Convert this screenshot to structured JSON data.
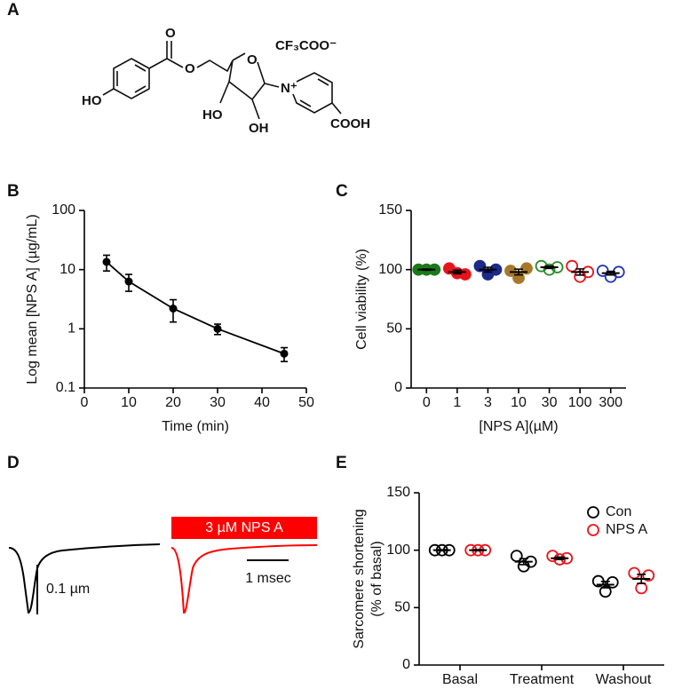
{
  "panel_labels": [
    "A",
    "B",
    "C",
    "D",
    "E"
  ],
  "structure": {
    "carbonyl_o": "O",
    "ester_o": "O",
    "ring_o": "O",
    "phenol": "HO",
    "ho_3": "HO",
    "oh_2": "OH",
    "nitrogen": "N⁺",
    "acid": "COOH",
    "counterion": "CF₃COO⁻"
  },
  "traces": {
    "treatment": "3 µM NPS A",
    "scale_y": "0.1 µm",
    "scale_x": "1 msec"
  },
  "chart_data": [
    {
      "type": "line",
      "xlabel": "Time (min)",
      "ylabel": "Log mean [NPS A] (µg/mL)",
      "x": [
        5,
        10,
        20,
        30,
        45
      ],
      "values": [
        13.5,
        6.3,
        2.2,
        1.0,
        0.38
      ],
      "errors": [
        4,
        2,
        0.9,
        0.2,
        0.1
      ],
      "color": "#000000",
      "xlim": [
        0,
        50
      ],
      "xticks": [
        0,
        10,
        20,
        30,
        40,
        50
      ],
      "ylim": [
        0.1,
        100
      ],
      "yticks": [
        0.1,
        1,
        10,
        100
      ],
      "log_y": true
    },
    {
      "type": "dot",
      "xlabel": "[NPS A](µM)",
      "ylabel": "Cell viability (%)",
      "categories": [
        "0",
        "1",
        "3",
        "10",
        "30",
        "100",
        "300"
      ],
      "colors": [
        "#1a7a1a",
        "#e8141b",
        "#1c2a8a",
        "#a8782a",
        "#2a8a2a",
        "#e8141b",
        "#2233bb"
      ],
      "filled": [
        true,
        true,
        true,
        true,
        false,
        false,
        false
      ],
      "values": [
        [
          100,
          100,
          100
        ],
        [
          101,
          97,
          96
        ],
        [
          103,
          96,
          100
        ],
        [
          99,
          93,
          101
        ],
        [
          103,
          100,
          102
        ],
        [
          103,
          94,
          98
        ],
        [
          99,
          94,
          98
        ]
      ],
      "means": [
        100,
        98,
        100,
        98,
        102,
        98,
        97
      ],
      "sems": [
        0.5,
        1.5,
        2,
        2.4,
        1,
        2.6,
        1.5
      ],
      "ylim": [
        0,
        150
      ],
      "yticks": [
        0,
        50,
        100,
        150
      ]
    },
    {
      "type": "dot",
      "ylabel": [
        "Sarcomere shortening",
        "(% of basal)"
      ],
      "categories": [
        "Basal",
        "Treatment",
        "Washout"
      ],
      "series": [
        {
          "name": "Con",
          "color": "#000000",
          "values": [
            [
              100,
              100,
              100
            ],
            [
              95,
              86,
              90
            ],
            [
              73,
              64,
              72
            ]
          ],
          "means": [
            100,
            90,
            70
          ],
          "sems": [
            0.5,
            2.6,
            2.8
          ]
        },
        {
          "name": "NPS A",
          "color": "#e8141b",
          "values": [
            [
              100,
              100,
              100
            ],
            [
              95,
              92,
              93
            ],
            [
              80,
              67,
              78
            ]
          ],
          "means": [
            100,
            93,
            75
          ],
          "sems": [
            0.5,
            1,
            4
          ]
        }
      ],
      "ylim": [
        0,
        150
      ],
      "yticks": [
        0,
        50,
        100,
        150
      ],
      "legend": "upper right"
    }
  ]
}
